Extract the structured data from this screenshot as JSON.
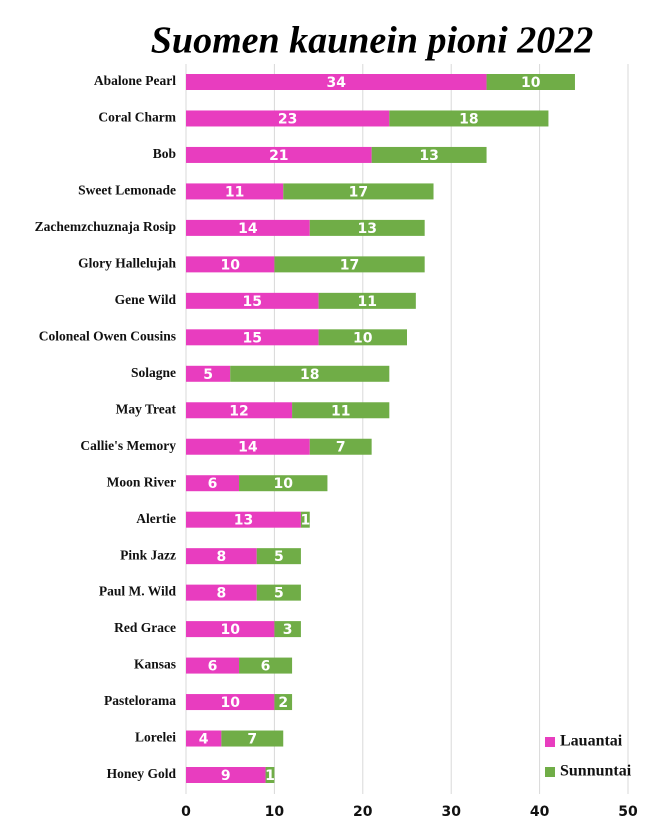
{
  "chart_data": {
    "type": "stacked-barh",
    "title": "Suomen kaunein pioni 2022",
    "categories": [
      "Abalone Pearl",
      "Coral Charm",
      "Bob",
      "Sweet Lemonade",
      "Zachemzchuznaja Rosip",
      "Glory Hallelujah",
      "Gene Wild",
      "Coloneal Owen Cousins",
      "Solagne",
      "May Treat",
      "Callie's Memory",
      "Moon River",
      "Alertie",
      "Pink Jazz",
      "Paul M. Wild",
      "Red Grace",
      "Kansas",
      "Pastelorama",
      "Lorelei",
      "Honey Gold"
    ],
    "series": [
      {
        "name": "Lauantai",
        "color": "#e83dbf",
        "values": [
          34,
          23,
          21,
          11,
          14,
          10,
          15,
          15,
          5,
          12,
          14,
          6,
          13,
          8,
          8,
          10,
          6,
          10,
          4,
          9
        ]
      },
      {
        "name": "Sunnuntai",
        "color": "#70ad47",
        "values": [
          10,
          18,
          13,
          17,
          13,
          17,
          11,
          10,
          18,
          11,
          7,
          10,
          1,
          5,
          5,
          3,
          6,
          2,
          7,
          1
        ]
      }
    ],
    "xlim": [
      0,
      50
    ],
    "xticks": [
      0,
      10,
      20,
      30,
      40,
      50
    ],
    "grid": true,
    "legend": "lower right"
  }
}
